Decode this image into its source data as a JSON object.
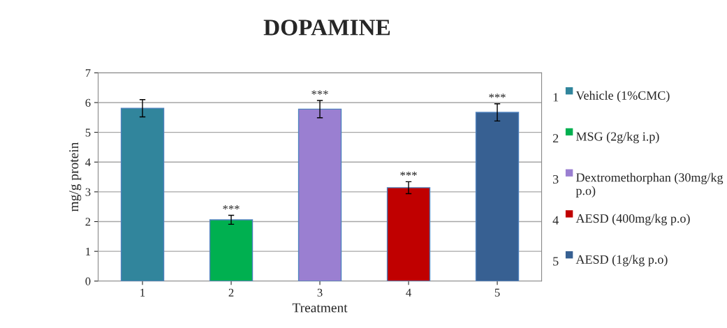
{
  "chart_data": {
    "type": "bar",
    "title": "DOPAMINE",
    "xlabel": "Treatment",
    "ylabel": "mg/g protein",
    "categories": [
      "1",
      "2",
      "3",
      "4",
      "5"
    ],
    "series": [
      {
        "name": "Vehicle (1%CMC)",
        "color": "#31859c",
        "values": [
          5.81,
          null,
          null,
          null,
          null
        ],
        "errors": [
          0.29,
          null,
          null,
          null,
          null
        ]
      },
      {
        "name": "MSG (2g/kg i.p)",
        "color": "#00b050",
        "values": [
          null,
          2.06,
          null,
          null,
          null
        ],
        "errors": [
          null,
          0.15,
          null,
          null,
          null
        ]
      },
      {
        "name": "Dextromethorphan (30mg/kg p.o)",
        "color": "#9a7fd1",
        "values": [
          null,
          null,
          5.78,
          null,
          null
        ],
        "errors": [
          null,
          null,
          0.29,
          null,
          null
        ]
      },
      {
        "name": "AESD (400mg/kg p.o)",
        "color": "#c00000",
        "values": [
          null,
          null,
          null,
          3.14,
          null
        ],
        "errors": [
          null,
          null,
          null,
          0.2,
          null
        ]
      },
      {
        "name": "AESD (1g/kg p.o)",
        "color": "#376092",
        "values": [
          null,
          null,
          null,
          null,
          5.67
        ],
        "errors": [
          null,
          null,
          null,
          null,
          0.29
        ]
      }
    ],
    "annotations": [
      {
        "text": "***",
        "x": "2",
        "y": 2.21
      },
      {
        "text": "***",
        "x": "3",
        "y": 6.07
      },
      {
        "text": "***",
        "x": "4",
        "y": 3.34
      },
      {
        "text": "***",
        "x": "5",
        "y": 5.96
      }
    ],
    "ylim": [
      0,
      7
    ],
    "yticks": [
      0,
      1,
      2,
      3,
      4,
      5,
      6,
      7
    ],
    "grid": "y",
    "legend": "right"
  }
}
